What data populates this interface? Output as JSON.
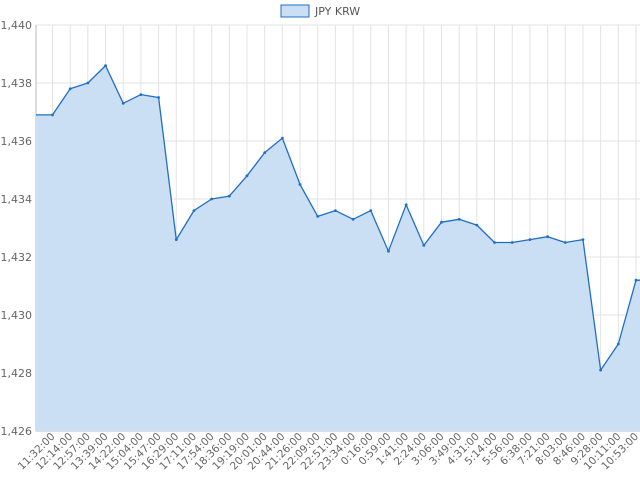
{
  "chart_data": {
    "type": "area",
    "legend": {
      "position": "top",
      "entries": [
        "JPY KRW"
      ]
    },
    "series": [
      {
        "name": "JPY KRW",
        "x": [
          "11:32:00",
          "12:14:00",
          "12:57:00",
          "13:39:00",
          "14:22:00",
          "15:04:00",
          "15:47:00",
          "16:29:00",
          "17:11:00",
          "17:54:00",
          "18:36:00",
          "19:19:00",
          "20:01:00",
          "20:44:00",
          "21:26:00",
          "22:09:00",
          "22:51:00",
          "23:34:00",
          "0:16:00",
          "0:59:00",
          "1:41:00",
          "2:24:00",
          "3:06:00",
          "3:49:00",
          "4:31:00",
          "5:14:00",
          "5:56:00",
          "6:38:00",
          "7:21:00",
          "8:03:00",
          "8:46:00",
          "9:28:00",
          "10:11:00",
          "10:53:00"
        ],
        "values": [
          1436.9,
          1437.8,
          1438.0,
          1438.6,
          1437.3,
          1437.6,
          1437.5,
          1432.6,
          1433.6,
          1434.0,
          1434.1,
          1434.8,
          1435.6,
          1436.1,
          1434.5,
          1433.4,
          1433.6,
          1433.3,
          1433.6,
          1432.2,
          1433.8,
          1432.4,
          1433.2,
          1433.3,
          1433.1,
          1432.5,
          1432.5,
          1432.6,
          1432.7,
          1432.5,
          1432.6,
          1428.1,
          1429.0,
          1431.2
        ]
      }
    ],
    "xlabels": [
      "11:32:00",
      "12:14:00",
      "12:57:00",
      "13:39:00",
      "14:22:00",
      "15:04:00",
      "15:47:00",
      "16:29:00",
      "17:11:00",
      "17:54:00",
      "18:36:00",
      "19:19:00",
      "20:01:00",
      "20:44:00",
      "21:26:00",
      "22:09:00",
      "22:51:00",
      "23:34:00",
      "0:16:00",
      "0:59:00",
      "1:41:00",
      "2:24:00",
      "3:06:00",
      "3:49:00",
      "4:31:00",
      "5:14:00",
      "5:56:00",
      "6:38:00",
      "7:21:00",
      "8:03:00",
      "8:46:00",
      "9:28:00",
      "10:11:00",
      "10:53:00"
    ],
    "yticks": [
      "1,426",
      "1,428",
      "1,430",
      "1,432",
      "1,434",
      "1,436",
      "1,438",
      "1,440"
    ],
    "ylim": [
      1426,
      1440
    ],
    "grid": true,
    "colors": {
      "line": "#1f6fc6",
      "fill": "#cadff4",
      "grid": "#e3e3e3",
      "axis": "#666666"
    }
  }
}
